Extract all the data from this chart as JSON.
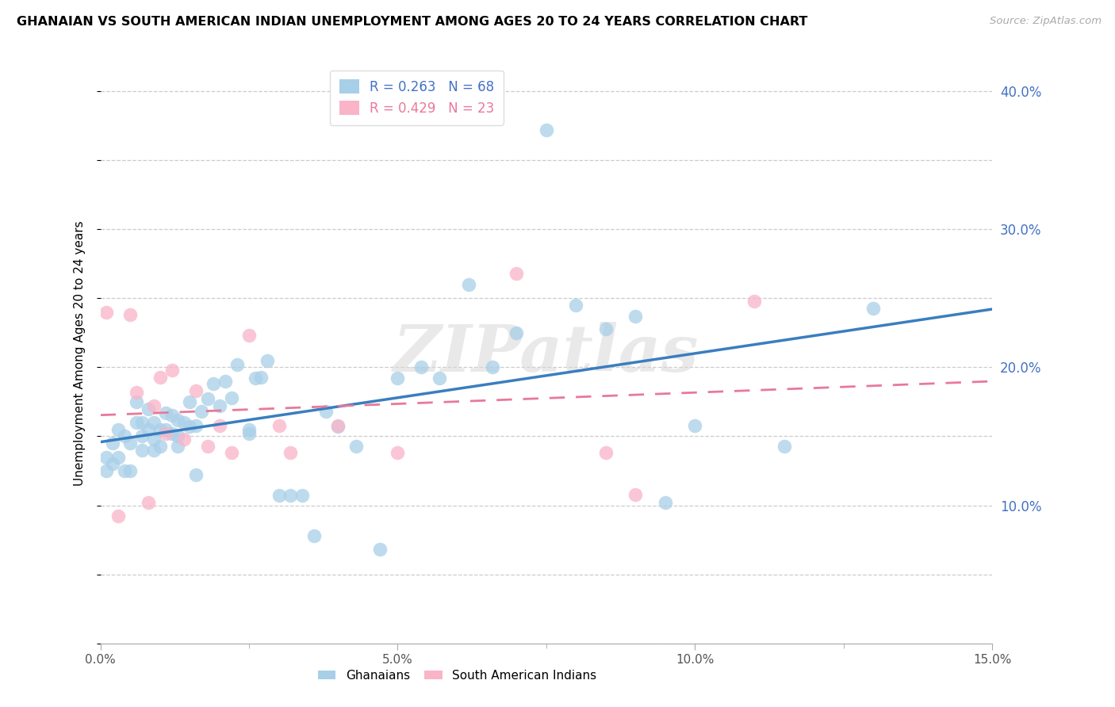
{
  "title": "GHANAIAN VS SOUTH AMERICAN INDIAN UNEMPLOYMENT AMONG AGES 20 TO 24 YEARS CORRELATION CHART",
  "source": "Source: ZipAtlas.com",
  "ylabel": "Unemployment Among Ages 20 to 24 years",
  "xlim": [
    0,
    0.15
  ],
  "ylim": [
    0,
    0.42
  ],
  "xticks": [
    0.0,
    0.05,
    0.1,
    0.15
  ],
  "yticks": [
    0.0,
    0.1,
    0.2,
    0.3,
    0.4
  ],
  "xticklabels": [
    "0.0%",
    "",
    "5.0%",
    "",
    "10.0%",
    "",
    "15.0%"
  ],
  "bottom_xticks": [
    0.0,
    0.025,
    0.05,
    0.075,
    0.1,
    0.125,
    0.15
  ],
  "right_yticklabels": [
    "10.0%",
    "20.0%",
    "30.0%",
    "40.0%"
  ],
  "ghanaian_color": "#a8cfe8",
  "south_american_color": "#f9b4c8",
  "ghanaian_R": 0.263,
  "ghanaian_N": 68,
  "south_american_R": 0.429,
  "south_american_N": 23,
  "ghanaian_line_color": "#3a7ebf",
  "south_american_line_color": "#e8799a",
  "watermark": "ZIPatlas",
  "ghanaian_x": [
    0.001,
    0.001,
    0.002,
    0.002,
    0.003,
    0.003,
    0.004,
    0.004,
    0.005,
    0.005,
    0.006,
    0.006,
    0.007,
    0.007,
    0.007,
    0.008,
    0.008,
    0.009,
    0.009,
    0.009,
    0.01,
    0.01,
    0.011,
    0.011,
    0.012,
    0.012,
    0.013,
    0.013,
    0.013,
    0.014,
    0.015,
    0.015,
    0.016,
    0.016,
    0.017,
    0.018,
    0.019,
    0.02,
    0.021,
    0.022,
    0.023,
    0.025,
    0.026,
    0.027,
    0.028,
    0.03,
    0.032,
    0.034,
    0.036,
    0.038,
    0.04,
    0.043,
    0.047,
    0.05,
    0.054,
    0.057,
    0.062,
    0.066,
    0.07,
    0.075,
    0.08,
    0.085,
    0.09,
    0.095,
    0.1,
    0.115,
    0.13,
    0.025
  ],
  "ghanaian_y": [
    0.135,
    0.125,
    0.145,
    0.13,
    0.155,
    0.135,
    0.15,
    0.125,
    0.145,
    0.125,
    0.16,
    0.175,
    0.16,
    0.15,
    0.14,
    0.17,
    0.155,
    0.16,
    0.148,
    0.14,
    0.155,
    0.143,
    0.167,
    0.155,
    0.165,
    0.152,
    0.162,
    0.15,
    0.143,
    0.16,
    0.157,
    0.175,
    0.158,
    0.122,
    0.168,
    0.177,
    0.188,
    0.172,
    0.19,
    0.178,
    0.202,
    0.152,
    0.192,
    0.193,
    0.205,
    0.107,
    0.107,
    0.107,
    0.078,
    0.168,
    0.157,
    0.143,
    0.068,
    0.192,
    0.2,
    0.192,
    0.26,
    0.2,
    0.225,
    0.372,
    0.245,
    0.228,
    0.237,
    0.102,
    0.158,
    0.143,
    0.243,
    0.155
  ],
  "south_american_x": [
    0.001,
    0.003,
    0.005,
    0.006,
    0.008,
    0.009,
    0.01,
    0.011,
    0.012,
    0.014,
    0.016,
    0.018,
    0.02,
    0.022,
    0.025,
    0.03,
    0.032,
    0.04,
    0.05,
    0.07,
    0.085,
    0.09,
    0.11
  ],
  "south_american_y": [
    0.24,
    0.092,
    0.238,
    0.182,
    0.102,
    0.172,
    0.193,
    0.152,
    0.198,
    0.148,
    0.183,
    0.143,
    0.158,
    0.138,
    0.223,
    0.158,
    0.138,
    0.158,
    0.138,
    0.268,
    0.138,
    0.108,
    0.248
  ]
}
